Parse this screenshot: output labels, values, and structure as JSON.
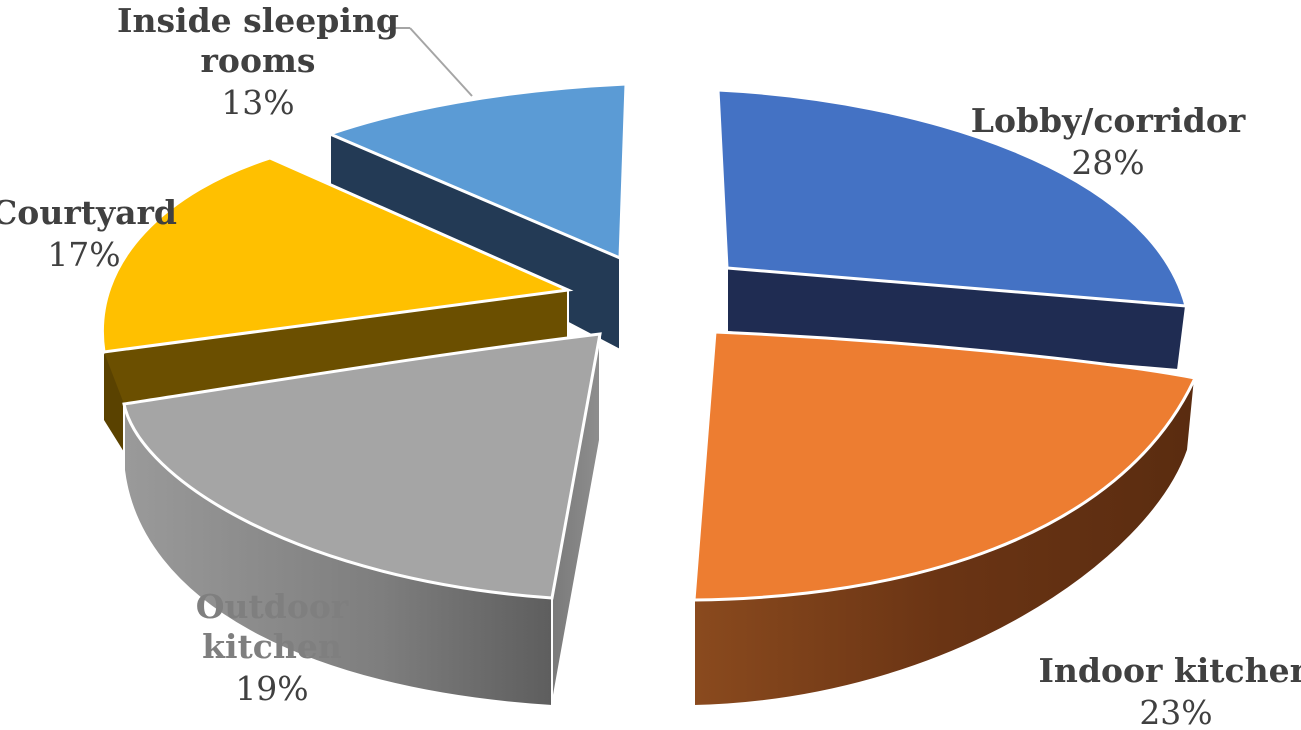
{
  "chart_data": {
    "type": "pie",
    "title": "",
    "slices": [
      {
        "name": "Lobby/corridor",
        "value": 28,
        "label": "28%",
        "color": "#4472C4",
        "side_color": "#1F2F57"
      },
      {
        "name": "Indoor kitchen",
        "value": 23,
        "label": "23%",
        "color": "#ED7D31",
        "side_color": "#8A4216"
      },
      {
        "name": "Outdoor kitchen",
        "value": 19,
        "label": "19%",
        "color": "#A5A5A5",
        "side_color": "#6E6E6E"
      },
      {
        "name": "Courtyard",
        "value": 17,
        "label": "17%",
        "color": "#FFC000",
        "side_color": "#6B4F00"
      },
      {
        "name": "Inside sleeping rooms",
        "value": 13,
        "label": "13%",
        "color": "#5B9BD5",
        "side_color": "#223A55"
      }
    ],
    "style": "3d-exploded",
    "legend": "none",
    "data_labels": "outside"
  }
}
